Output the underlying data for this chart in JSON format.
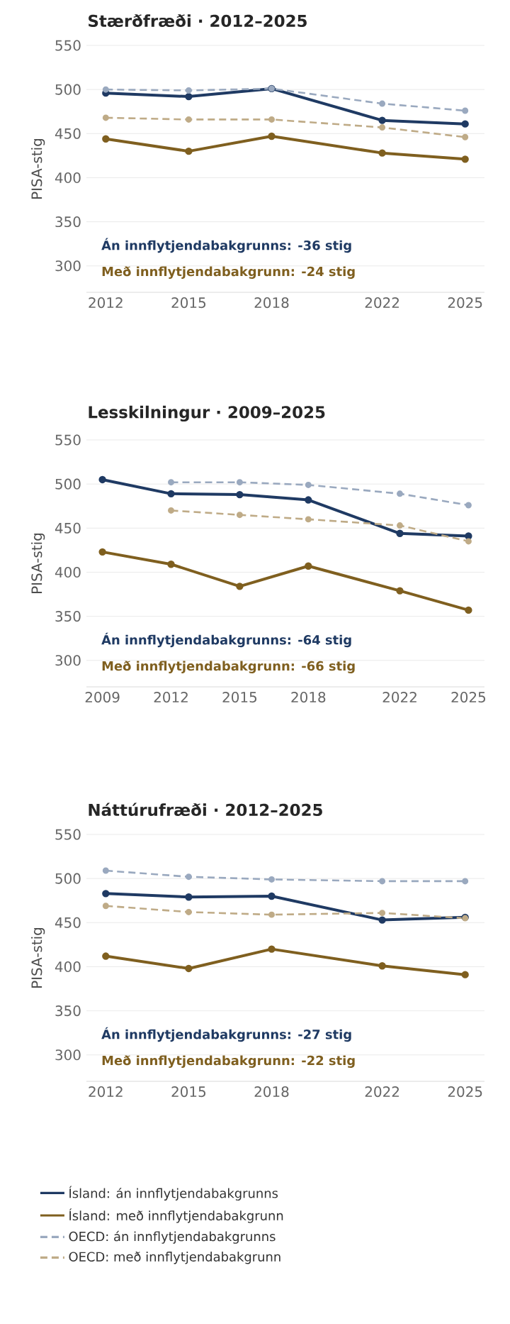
{
  "chart_data": [
    {
      "type": "line",
      "title": "Stærðfræði · 2012–2025",
      "ylabel": "PISA-stig",
      "x": [
        2012,
        2015,
        2018,
        2022,
        2025
      ],
      "xlim": [
        2011.3,
        2025.7
      ],
      "xticks": [
        2012,
        2015,
        2018,
        2022,
        2025
      ],
      "ylim": [
        270,
        550
      ],
      "yticks": [
        300,
        350,
        400,
        450,
        500,
        550
      ],
      "grid": "y",
      "marker": "circle",
      "legend": false,
      "series": [
        {
          "color": "#1f3a63",
          "line_style": "solid",
          "values": [
            496,
            492,
            501,
            465,
            461
          ]
        },
        {
          "color": "#7f5f1f",
          "line_style": "solid",
          "values": [
            444,
            430,
            447,
            428,
            421
          ]
        },
        {
          "color": "#9aa9bf",
          "line_style": "dashed",
          "values": [
            500,
            499,
            501,
            484,
            476
          ]
        },
        {
          "color": "#bfab87",
          "line_style": "dashed",
          "values": [
            468,
            466,
            466,
            457,
            446
          ]
        }
      ],
      "annotations": [
        "Án innflytjendabakgrunns: -36 stig",
        "Með innflytjendabakgrunn: -24 stig"
      ]
    },
    {
      "type": "line",
      "title": "Lesskilningur · 2009–2025",
      "ylabel": "PISA-stig",
      "x": [
        2009,
        2012,
        2015,
        2018,
        2022,
        2025
      ],
      "xlim": [
        2008.3,
        2025.7
      ],
      "xticks": [
        2009,
        2012,
        2015,
        2018,
        2022,
        2025
      ],
      "ylim": [
        270,
        550
      ],
      "yticks": [
        300,
        350,
        400,
        450,
        500,
        550
      ],
      "grid": "y",
      "marker": "circle",
      "legend": false,
      "series": [
        {
          "color": "#1f3a63",
          "line_style": "solid",
          "values": [
            505,
            489,
            488,
            482,
            444,
            441
          ]
        },
        {
          "color": "#7f5f1f",
          "line_style": "solid",
          "values": [
            423,
            409,
            384,
            407,
            379,
            357
          ]
        },
        {
          "color": "#9aa9bf",
          "line_style": "dashed",
          "values": [
            null,
            502,
            502,
            499,
            489,
            476
          ]
        },
        {
          "color": "#bfab87",
          "line_style": "dashed",
          "values": [
            null,
            470,
            465,
            460,
            453,
            435
          ]
        }
      ],
      "annotations": [
        "Án innflytjendabakgrunns: -64 stig",
        "Með innflytjendabakgrunn: -66 stig"
      ]
    },
    {
      "type": "line",
      "title": "Náttúrufræði · 2012–2025",
      "ylabel": "PISA-stig",
      "x": [
        2012,
        2015,
        2018,
        2022,
        2025
      ],
      "xlim": [
        2011.3,
        2025.7
      ],
      "xticks": [
        2012,
        2015,
        2018,
        2022,
        2025
      ],
      "ylim": [
        270,
        550
      ],
      "yticks": [
        300,
        350,
        400,
        450,
        500,
        550
      ],
      "grid": "y",
      "marker": "circle",
      "legend": "bottom",
      "series": [
        {
          "name": "Ísland: án innflytjendabakgrunns",
          "color": "#1f3a63",
          "line_style": "solid",
          "values": [
            483,
            479,
            480,
            453,
            456
          ]
        },
        {
          "name": "Ísland: með innflytjendabakgrunn",
          "color": "#7f5f1f",
          "line_style": "solid",
          "values": [
            412,
            398,
            420,
            401,
            391
          ]
        },
        {
          "name": "OECD: án innflytjendabakgrunns",
          "color": "#9aa9bf",
          "line_style": "dashed",
          "values": [
            509,
            502,
            499,
            497,
            497
          ]
        },
        {
          "name": "OECD: með innflytjendabakgrunn",
          "color": "#bfab87",
          "line_style": "dashed",
          "values": [
            469,
            462,
            459,
            461,
            455
          ]
        }
      ],
      "annotations": [
        "Án innflytjendabakgrunns: -27 stig",
        "Með innflytjendabakgrunn: -22 stig"
      ]
    }
  ]
}
